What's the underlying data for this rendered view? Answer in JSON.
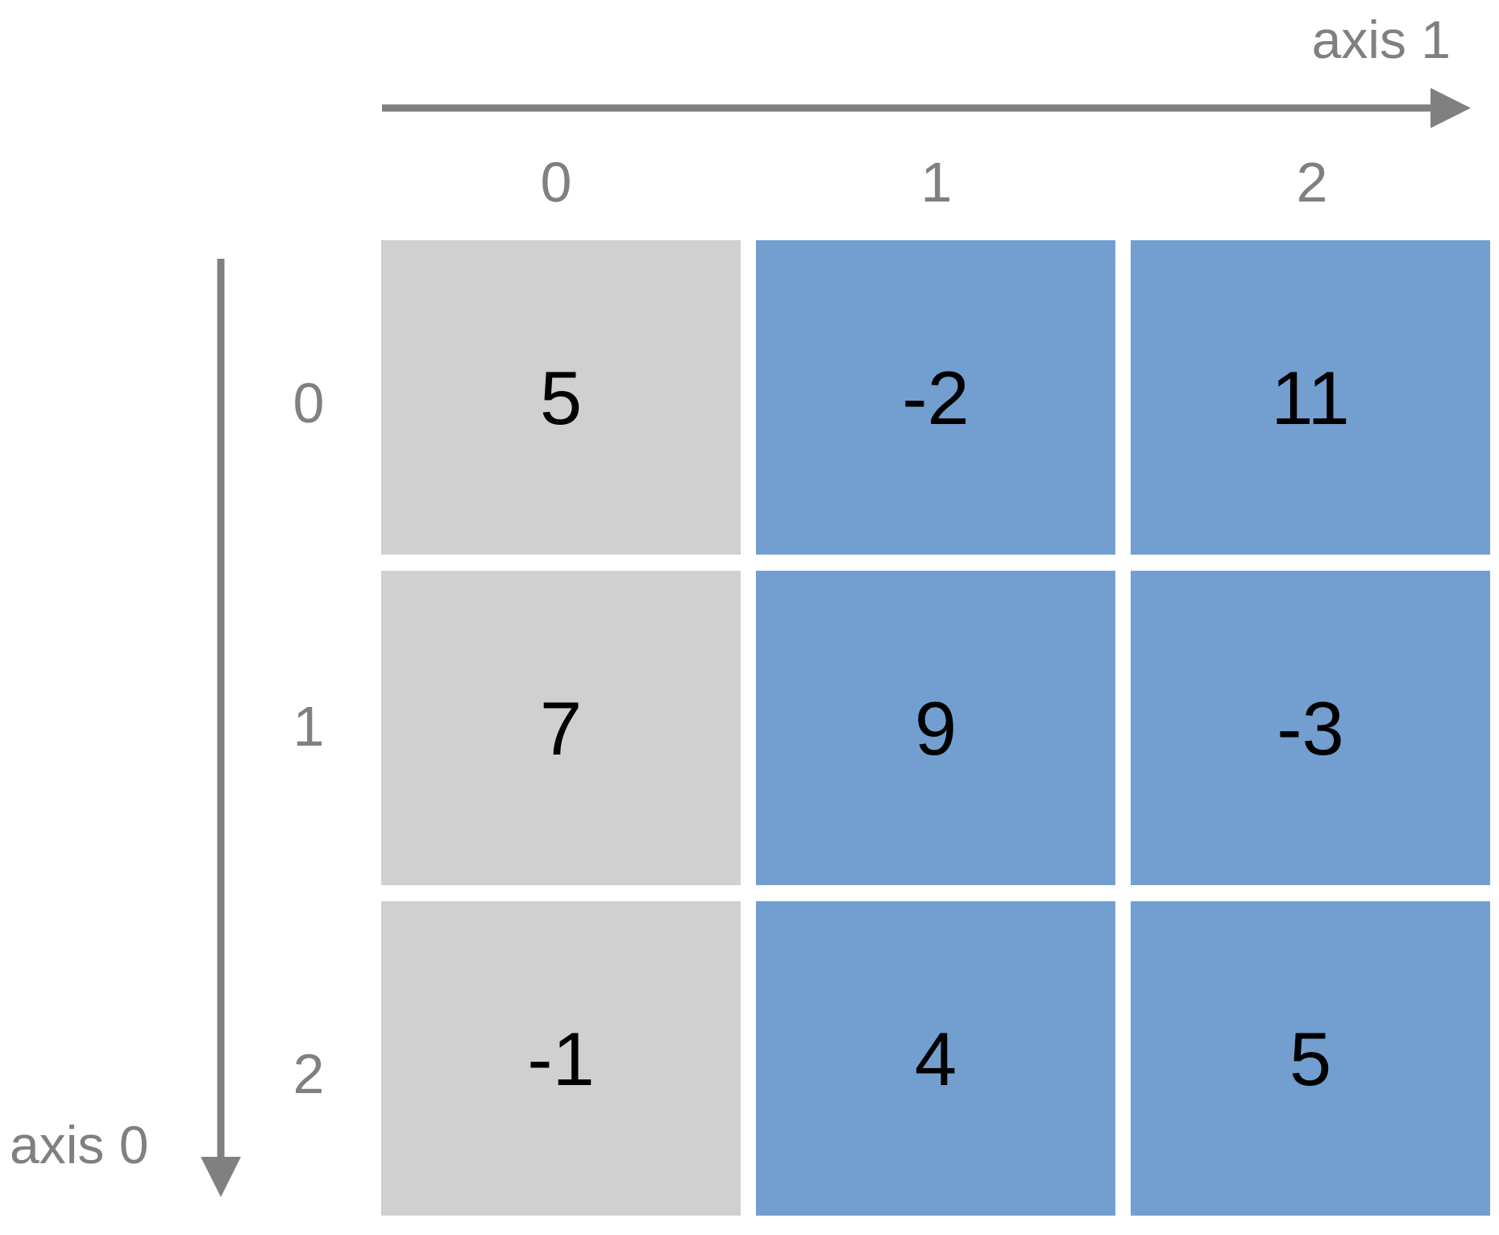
{
  "axes": {
    "axis1_label": "axis 1",
    "axis0_label": "axis 0",
    "column_indices": [
      "0",
      "1",
      "2"
    ],
    "row_indices": [
      "0",
      "1",
      "2"
    ],
    "color": "#808080"
  },
  "matrix": {
    "rows": [
      [
        "5",
        "-2",
        "11"
      ],
      [
        "7",
        "9",
        "-3"
      ],
      [
        "-1",
        "4",
        "5"
      ]
    ],
    "highlighted_column": 0,
    "highlight_color": "#d0d0d0",
    "cell_color": "#739fd0",
    "value_color": "#000000"
  }
}
